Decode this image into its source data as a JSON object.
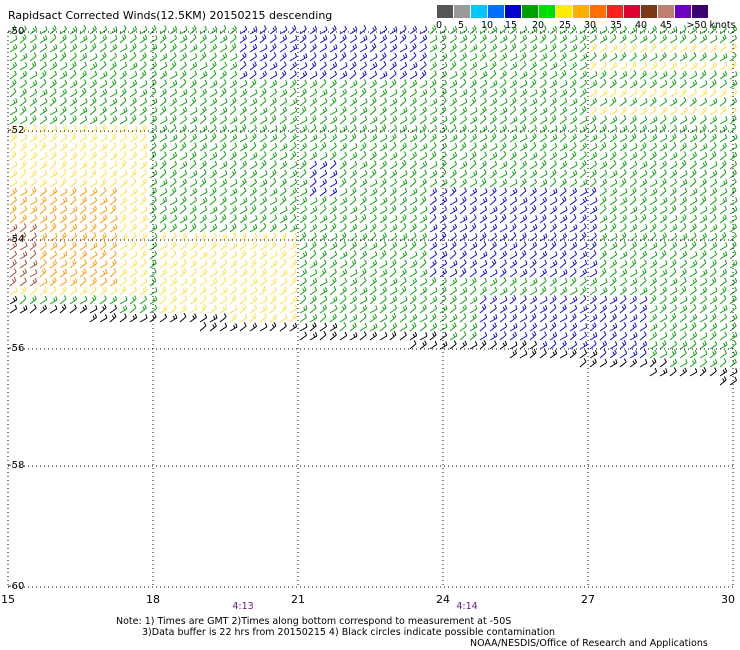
{
  "title": "Rapidsact Corrected Winds(12.5KM) 20150215 descending",
  "legend": {
    "colors": [
      "#555555",
      "#9a9a9a",
      "#00c8ff",
      "#0070ff",
      "#0000cc",
      "#00a000",
      "#00e000",
      "#ffee00",
      "#ffb000",
      "#ff7000",
      "#ff2020",
      "#dd0030",
      "#7a3a18",
      "#c08070",
      "#7000c0",
      "#3a0070"
    ],
    "labels": [
      "0",
      "5",
      "10",
      "15",
      "20",
      "25",
      "30",
      "35",
      "40",
      "45",
      ">50 knots"
    ]
  },
  "axes": {
    "lat_labels": [
      "-50",
      "-52",
      "-54",
      "-56",
      "-58",
      "-60"
    ],
    "lon_labels": [
      "15",
      "18",
      "21",
      "24",
      "27",
      "30"
    ]
  },
  "times": [
    "4:13",
    "4:14"
  ],
  "notes": [
    "Note: 1) Times are GMT 2)Times along bottom correspond to measurement at -50S",
    "3)Data buffer is 22 hrs from 20150215 4) Black circles indicate possible contamination"
  ],
  "credit": "NOAA/NESDIS/Office of Research and Applications",
  "wind_colors": {
    "calm": "#000000",
    "blue": "#1010d0",
    "green": "#10a010",
    "yellow": "#ffe040",
    "orange": "#ff9a00",
    "brown": "#a05030"
  }
}
